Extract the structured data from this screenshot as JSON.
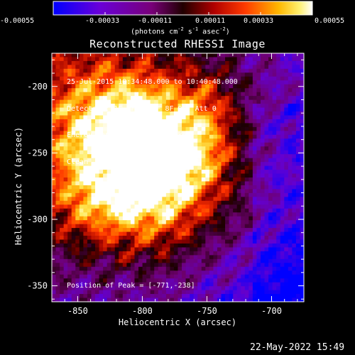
{
  "window": {
    "title": "Reconstructed RHESSI Image",
    "date_stamp": "22-May-2022 15:49"
  },
  "colorbar": {
    "ticks": [
      "-0.00055",
      "-0.00033",
      "-0.00011",
      "0.00011",
      "0.00033",
      "0.00055"
    ],
    "unit_label": "(photons cm",
    "unit_exp1": "-2",
    "unit_mid": " s",
    "unit_exp2": "-1",
    "unit_mid2": " asec",
    "unit_exp3": "-2",
    "unit_end": ")"
  },
  "annotations": {
    "time_range": "25-Jul-2015 10:34:48.000 to 10:40:48.000",
    "detectors": "Detectors: 1F 3F 6F 7F 8F 9F, Att 0",
    "energy_range": "Energy Range: 12.0 - 25.0 keV",
    "method": "Clean    Total Counts: 1.31E+04",
    "peak": "Position of Peak = [-771,-238]"
  },
  "chart_data": {
    "type": "heatmap",
    "title": "Reconstructed RHESSI Image",
    "xlabel": "Heliocentric X (arcsec)",
    "ylabel": "Heliocentric Y (arcsec)",
    "xlim": [
      -870,
      -675
    ],
    "ylim": [
      -362,
      -175
    ],
    "x_ticks": [
      "-850",
      "-800",
      "-750",
      "-700"
    ],
    "x_tick_values": [
      -850,
      -800,
      -750,
      -700
    ],
    "y_ticks": [
      "-200",
      "-250",
      "-300",
      "-350"
    ],
    "y_tick_values": [
      -200,
      -250,
      -300,
      -350
    ],
    "colorbar_range": [
      -0.00055,
      0.00055
    ],
    "peak_position": [
      -771,
      -238
    ],
    "grid": false,
    "colors": {
      "colorbar_stops": [
        "#0000ff",
        "#7a00c8",
        "#7a007a",
        "#2a0000",
        "#c80000",
        "#ff6000",
        "#ffd000",
        "#ffffff"
      ]
    }
  }
}
